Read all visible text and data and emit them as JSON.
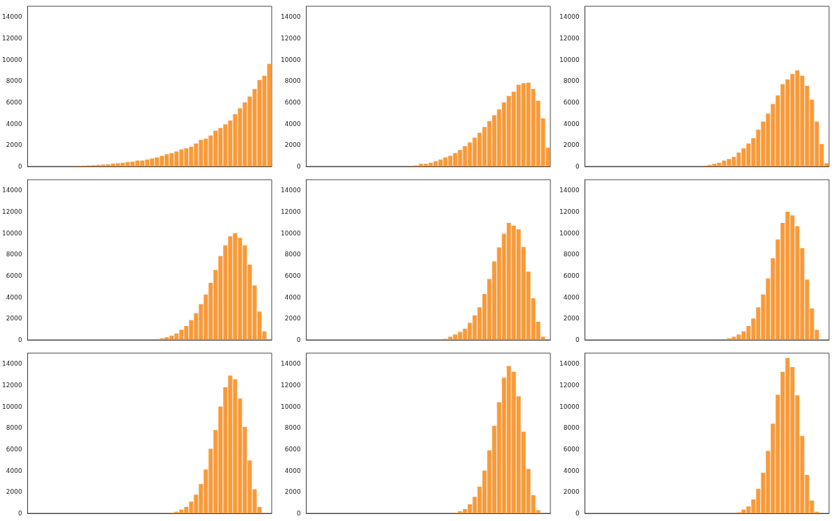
{
  "chart_data": [
    {
      "type": "bar",
      "categories": [
        null,
        null,
        null,
        null,
        null,
        null,
        null,
        null,
        null,
        null,
        null,
        null,
        null,
        null,
        null,
        null,
        null,
        null,
        null,
        null,
        null,
        null,
        null,
        null,
        null,
        null,
        null,
        null,
        null,
        null,
        null,
        null,
        null,
        null,
        null,
        null,
        null,
        null,
        null,
        null,
        null,
        null,
        null,
        null,
        null,
        null,
        null,
        null,
        null,
        null
      ],
      "values": [
        0,
        0,
        0,
        0,
        0,
        0,
        0,
        0,
        null,
        null,
        50,
        80,
        100,
        120,
        150,
        180,
        200,
        270,
        300,
        350,
        420,
        450,
        550,
        550,
        650,
        750,
        850,
        1000,
        1150,
        1250,
        1400,
        1600,
        1700,
        1850,
        2150,
        2500,
        2600,
        2900,
        3350,
        3600,
        3950,
        4300,
        4900,
        5450,
        6000,
        6550,
        7250,
        8100,
        8500,
        9600
      ],
      "color": "#f79a3a",
      "ylim": [
        0,
        15000
      ],
      "yticks": [
        0,
        2000,
        4000,
        6000,
        8000,
        10000,
        12000,
        14000
      ],
      "grid": false,
      "tick_labels": "y"
    },
    {
      "type": "bar",
      "categories": [
        null,
        null,
        null,
        null,
        null,
        null,
        null,
        null,
        null,
        null,
        null,
        null,
        null,
        null,
        null,
        null,
        null,
        null,
        null,
        null,
        null,
        null,
        null,
        null,
        null,
        null,
        null,
        null,
        null,
        null,
        null,
        null,
        null,
        null,
        null,
        null,
        null,
        null,
        null,
        null,
        null,
        null,
        null,
        null,
        null,
        null,
        null,
        null,
        null,
        null
      ],
      "values": [
        0,
        0,
        0,
        0,
        0,
        0,
        0,
        0,
        0,
        0,
        0,
        0,
        0,
        0,
        0,
        0,
        0,
        0,
        0,
        0,
        null,
        50,
        100,
        250,
        250,
        350,
        500,
        650,
        850,
        1000,
        1250,
        1550,
        1900,
        2250,
        2700,
        3150,
        3700,
        4250,
        4800,
        5350,
        6000,
        6600,
        7000,
        7650,
        7800,
        7850,
        7250,
        6150,
        4500,
        1750
      ],
      "color": "#f79a3a",
      "ylim": [
        0,
        15000
      ],
      "yticks": [
        0,
        2000,
        4000,
        6000,
        8000,
        10000,
        12000,
        14000
      ],
      "grid": false,
      "tick_labels": "y"
    },
    {
      "type": "bar",
      "categories": [
        null,
        null,
        null,
        null,
        null,
        null,
        null,
        null,
        null,
        null,
        null,
        null,
        null,
        null,
        null,
        null,
        null,
        null,
        null,
        null,
        null,
        null,
        null,
        null,
        null,
        null,
        null,
        null,
        null,
        null,
        null,
        null,
        null,
        null,
        null,
        null,
        null,
        null,
        null,
        null,
        null,
        null,
        null,
        null,
        null,
        null,
        null,
        null,
        null,
        null
      ],
      "values": [
        0,
        0,
        0,
        0,
        0,
        0,
        0,
        0,
        0,
        0,
        0,
        0,
        0,
        0,
        0,
        0,
        0,
        0,
        0,
        0,
        0,
        0,
        0,
        0,
        80,
        150,
        250,
        350,
        550,
        700,
        900,
        1300,
        1700,
        2150,
        2650,
        3450,
        4200,
        4950,
        5850,
        6650,
        7700,
        8150,
        8650,
        9000,
        8500,
        7550,
        6250,
        4200,
        2100,
        300
      ],
      "color": "#f79a3a",
      "ylim": [
        0,
        15000
      ],
      "yticks": [
        0,
        2000,
        4000,
        6000,
        8000,
        10000,
        12000,
        14000
      ],
      "grid": false,
      "tick_labels": "y"
    },
    {
      "type": "bar",
      "categories": [
        null,
        null,
        null,
        null,
        null,
        null,
        null,
        null,
        null,
        null,
        null,
        null,
        null,
        null,
        null,
        null,
        null,
        null,
        null,
        null,
        null,
        null,
        null,
        null,
        null,
        null,
        null,
        null,
        null,
        null,
        null,
        null,
        null,
        null,
        null,
        null,
        null,
        null,
        null,
        null,
        null,
        null,
        null,
        null,
        null,
        null,
        null,
        null,
        null,
        null
      ],
      "values": [
        0,
        0,
        0,
        0,
        0,
        0,
        0,
        0,
        0,
        0,
        0,
        0,
        0,
        0,
        0,
        0,
        0,
        0,
        0,
        0,
        0,
        0,
        0,
        0,
        0,
        0,
        80,
        150,
        250,
        400,
        600,
        950,
        1300,
        1850,
        2500,
        3350,
        4250,
        5350,
        6550,
        7850,
        8850,
        9700,
        10000,
        9550,
        8850,
        7050,
        5100,
        2650,
        800,
        0
      ],
      "color": "#f79a3a",
      "ylim": [
        0,
        15000
      ],
      "yticks": [
        0,
        2000,
        4000,
        6000,
        8000,
        10000,
        12000,
        14000
      ],
      "grid": false,
      "tick_labels": "y"
    },
    {
      "type": "bar",
      "categories": [
        null,
        null,
        null,
        null,
        null,
        null,
        null,
        null,
        null,
        null,
        null,
        null,
        null,
        null,
        null,
        null,
        null,
        null,
        null,
        null,
        null,
        null,
        null,
        null,
        null,
        null,
        null,
        null,
        null,
        null,
        null,
        null,
        null,
        null,
        null,
        null,
        null,
        null,
        null,
        null,
        null,
        null,
        null,
        null,
        null,
        null,
        null,
        null,
        null,
        null
      ],
      "values": [
        0,
        0,
        0,
        0,
        0,
        0,
        0,
        0,
        0,
        0,
        0,
        0,
        0,
        0,
        0,
        0,
        0,
        0,
        0,
        0,
        0,
        0,
        0,
        0,
        0,
        0,
        0,
        0,
        100,
        300,
        500,
        750,
        1050,
        1600,
        2300,
        3050,
        4300,
        5700,
        7350,
        8650,
        9950,
        10950,
        10700,
        10350,
        8700,
        6400,
        3900,
        1700,
        300,
        0
      ],
      "color": "#f79a3a",
      "ylim": [
        0,
        15000
      ],
      "yticks": [
        0,
        2000,
        4000,
        6000,
        8000,
        10000,
        12000,
        14000
      ],
      "grid": false,
      "tick_labels": "y"
    },
    {
      "type": "bar",
      "categories": [
        null,
        null,
        null,
        null,
        null,
        null,
        null,
        null,
        null,
        null,
        null,
        null,
        null,
        null,
        null,
        null,
        null,
        null,
        null,
        null,
        null,
        null,
        null,
        null,
        null,
        null,
        null,
        null,
        null,
        null,
        null,
        null,
        null,
        null,
        null,
        null,
        null,
        null,
        null,
        null,
        null,
        null,
        null,
        null,
        null,
        null,
        null,
        null,
        null,
        null
      ],
      "values": [
        0,
        0,
        0,
        0,
        0,
        0,
        0,
        0,
        0,
        0,
        0,
        0,
        0,
        0,
        0,
        0,
        0,
        0,
        0,
        0,
        0,
        0,
        0,
        0,
        0,
        0,
        0,
        0,
        0,
        150,
        300,
        500,
        800,
        1300,
        2000,
        3050,
        4250,
        5750,
        7650,
        9400,
        10950,
        12000,
        11650,
        10650,
        8600,
        5650,
        2950,
        950,
        50,
        0
      ],
      "color": "#f79a3a",
      "ylim": [
        0,
        15000
      ],
      "yticks": [
        0,
        2000,
        4000,
        6000,
        8000,
        10000,
        12000,
        14000
      ],
      "grid": false,
      "tick_labels": "y"
    },
    {
      "type": "bar",
      "categories": [
        null,
        null,
        null,
        null,
        null,
        null,
        null,
        null,
        null,
        null,
        null,
        null,
        null,
        null,
        null,
        null,
        null,
        null,
        null,
        null,
        null,
        null,
        null,
        null,
        null,
        null,
        null,
        null,
        null,
        null,
        null,
        null,
        null,
        null,
        null,
        null,
        null,
        null,
        null,
        null,
        null,
        null,
        null,
        null,
        null,
        null,
        null,
        null,
        null,
        null
      ],
      "values": [
        0,
        0,
        0,
        0,
        0,
        0,
        0,
        0,
        0,
        0,
        0,
        0,
        0,
        0,
        0,
        0,
        0,
        0,
        0,
        0,
        0,
        0,
        0,
        0,
        0,
        0,
        0,
        0,
        0,
        50,
        150,
        350,
        600,
        1100,
        1750,
        2750,
        4100,
        6050,
        7800,
        10000,
        11800,
        12900,
        12550,
        10750,
        8100,
        4950,
        2250,
        600,
        0,
        0
      ],
      "color": "#f79a3a",
      "ylim": [
        0,
        15000
      ],
      "yticks": [
        0,
        2000,
        4000,
        6000,
        8000,
        10000,
        12000,
        14000
      ],
      "grid": false,
      "tick_labels": "y"
    },
    {
      "type": "bar",
      "categories": [
        null,
        null,
        null,
        null,
        null,
        null,
        null,
        null,
        null,
        null,
        null,
        null,
        null,
        null,
        null,
        null,
        null,
        null,
        null,
        null,
        null,
        null,
        null,
        null,
        null,
        null,
        null,
        null,
        null,
        null,
        null,
        null,
        null,
        null,
        null,
        null,
        null,
        null,
        null,
        null,
        null,
        null,
        null,
        null,
        null,
        null,
        null,
        null,
        null,
        null
      ],
      "values": [
        0,
        0,
        0,
        0,
        0,
        0,
        0,
        0,
        0,
        0,
        0,
        0,
        0,
        0,
        0,
        0,
        0,
        0,
        0,
        0,
        0,
        0,
        0,
        0,
        0,
        0,
        0,
        0,
        0,
        0,
        50,
        200,
        400,
        850,
        1550,
        2500,
        4000,
        5900,
        8200,
        10400,
        12700,
        13800,
        13250,
        10950,
        7650,
        4150,
        1700,
        300,
        0,
        0
      ],
      "color": "#f79a3a",
      "ylim": [
        0,
        15000
      ],
      "yticks": [
        0,
        2000,
        4000,
        6000,
        8000,
        10000,
        12000,
        14000
      ],
      "grid": false,
      "tick_labels": "y"
    },
    {
      "type": "bar",
      "categories": [
        null,
        null,
        null,
        null,
        null,
        null,
        null,
        null,
        null,
        null,
        null,
        null,
        null,
        null,
        null,
        null,
        null,
        null,
        null,
        null,
        null,
        null,
        null,
        null,
        null,
        null,
        null,
        null,
        null,
        null,
        null,
        null,
        null,
        null,
        null,
        null,
        null,
        null,
        null,
        null,
        null,
        null,
        null,
        null,
        null,
        null,
        null,
        null,
        null,
        null
      ],
      "values": [
        0,
        0,
        0,
        0,
        0,
        0,
        0,
        0,
        0,
        0,
        0,
        0,
        0,
        0,
        0,
        0,
        0,
        0,
        0,
        0,
        0,
        0,
        0,
        0,
        0,
        0,
        0,
        0,
        0,
        0,
        0,
        100,
        350,
        650,
        1300,
        2300,
        3800,
        5850,
        8400,
        11100,
        13250,
        14550,
        13700,
        11050,
        7250,
        3600,
        1200,
        150,
        0,
        0
      ],
      "color": "#f79a3a",
      "ylim": [
        0,
        15000
      ],
      "yticks": [
        0,
        2000,
        4000,
        6000,
        8000,
        10000,
        12000,
        14000
      ],
      "grid": false,
      "tick_labels": "y"
    }
  ]
}
